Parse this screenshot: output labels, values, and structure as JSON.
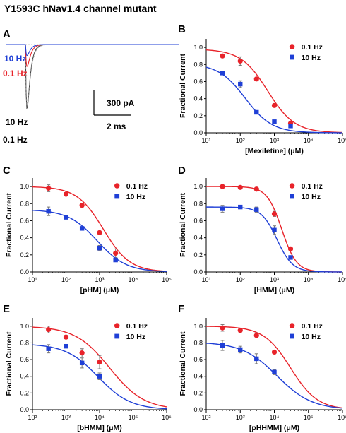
{
  "title": "Y1593C hNav1.4 channel mutant",
  "colors": {
    "red": "#e8232a",
    "blue": "#1f3fd6",
    "axis": "#000000",
    "error": "#777777"
  },
  "traces_panel": {
    "letter": "A",
    "label_10hz_top": "10 Hz",
    "label_01hz_top": "0.1 Hz",
    "label_10hz_bottom": "10 Hz",
    "label_01hz_bottom": "0.1 Hz",
    "scale_current": "300 pA",
    "scale_time": "2 ms"
  },
  "chart_data": [
    {
      "panel": "B",
      "type": "scatter",
      "fits": "sigmoidal curves",
      "xlabel": "[Mexiletine] (μM)",
      "ylabel": "Fractional Current",
      "xscale": "log",
      "xlim": [
        10,
        100000
      ],
      "ylim": [
        0,
        1.1
      ],
      "xticks": [
        "10¹",
        "10²",
        "10³",
        "10⁴",
        "10⁵"
      ],
      "yticks": [
        "0.0",
        "0.2",
        "0.4",
        "0.6",
        "0.8",
        "1.0"
      ],
      "series": [
        {
          "name": "0.1 Hz",
          "color": "red",
          "marker": "circle",
          "x": [
            30,
            100,
            300,
            1000,
            3000
          ],
          "y": [
            0.9,
            0.84,
            0.63,
            0.32,
            0.11
          ],
          "err": [
            0.02,
            0.05,
            0.02,
            0.02,
            0.02
          ],
          "fit": {
            "top": 0.98,
            "ic50": 640,
            "n": 1.1
          }
        },
        {
          "name": "10 Hz",
          "color": "blue",
          "marker": "square",
          "x": [
            30,
            100,
            300,
            1000,
            3000
          ],
          "y": [
            0.7,
            0.57,
            0.24,
            0.13,
            0.08
          ],
          "err": [
            0.02,
            0.04,
            0.02,
            0.01,
            0.01
          ],
          "fit": {
            "top": 0.81,
            "ic50": 140,
            "n": 1.1
          }
        }
      ]
    },
    {
      "panel": "C",
      "type": "scatter",
      "fits": "sigmoidal curves",
      "xlabel": "[pHM] (μM)",
      "ylabel": "Fractional Current",
      "xscale": "log",
      "xlim": [
        10,
        100000
      ],
      "ylim": [
        0,
        1.1
      ],
      "xticks": [
        "10¹",
        "10²",
        "10³",
        "10⁴",
        "10⁵"
      ],
      "yticks": [
        "0.0",
        "0.2",
        "0.4",
        "0.6",
        "0.8",
        "1.0"
      ],
      "series": [
        {
          "name": "0.1 Hz",
          "color": "red",
          "marker": "circle",
          "x": [
            30,
            100,
            300,
            1000,
            3000
          ],
          "y": [
            0.98,
            0.91,
            0.78,
            0.46,
            0.22
          ],
          "err": [
            0.04,
            0.02,
            0.02,
            0.02,
            0.05
          ],
          "fit": {
            "top": 1.0,
            "ic50": 1300,
            "n": 1.1
          }
        },
        {
          "name": "10 Hz",
          "color": "blue",
          "marker": "square",
          "x": [
            30,
            100,
            300,
            1000,
            3000
          ],
          "y": [
            0.71,
            0.64,
            0.51,
            0.28,
            0.14
          ],
          "err": [
            0.05,
            0.02,
            0.02,
            0.03,
            0.02
          ],
          "fit": {
            "top": 0.73,
            "ic50": 850,
            "n": 1.0
          }
        }
      ]
    },
    {
      "panel": "D",
      "type": "scatter",
      "fits": "sigmoidal curves",
      "xlabel": "[HMM] (μM)",
      "ylabel": "Fractional Current",
      "xscale": "log",
      "xlim": [
        10,
        100000
      ],
      "ylim": [
        0,
        1.1
      ],
      "xticks": [
        "10¹",
        "10²",
        "10³",
        "10⁴",
        "10⁵"
      ],
      "yticks": [
        "0.0",
        "0.2",
        "0.4",
        "0.6",
        "0.8",
        "1.0"
      ],
      "series": [
        {
          "name": "0.1 Hz",
          "color": "red",
          "marker": "circle",
          "x": [
            30,
            100,
            300,
            1000,
            3000
          ],
          "y": [
            1.0,
            0.99,
            0.97,
            0.68,
            0.27
          ],
          "err": [
            0.02,
            0.02,
            0.02,
            0.03,
            0.02
          ],
          "fit": {
            "top": 1.0,
            "ic50": 1650,
            "n": 2.0
          }
        },
        {
          "name": "10 Hz",
          "color": "blue",
          "marker": "square",
          "x": [
            30,
            100,
            300,
            1000,
            3000
          ],
          "y": [
            0.74,
            0.76,
            0.73,
            0.49,
            0.17
          ],
          "err": [
            0.04,
            0.02,
            0.03,
            0.05,
            0.02
          ],
          "fit": {
            "top": 0.76,
            "ic50": 1200,
            "n": 1.9
          }
        }
      ]
    },
    {
      "panel": "E",
      "type": "scatter",
      "fits": "sigmoidal curves",
      "xlabel": "[bHMM] (μM)",
      "ylabel": "Fractional Current",
      "xscale": "log",
      "xlim": [
        100,
        1000000
      ],
      "ylim": [
        0,
        1.1
      ],
      "xticks": [
        "10²",
        "10³",
        "10⁴",
        "10⁵",
        "10⁶"
      ],
      "yticks": [
        "0.0",
        "0.2",
        "0.4",
        "0.6",
        "0.8",
        "1.0"
      ],
      "series": [
        {
          "name": "0.1 Hz",
          "color": "red",
          "marker": "circle",
          "x": [
            300,
            1000,
            3000,
            10000
          ],
          "y": [
            0.96,
            0.87,
            0.68,
            0.57
          ],
          "err": [
            0.04,
            0.02,
            0.05,
            0.08
          ],
          "fit": {
            "top": 1.0,
            "ic50": 20000,
            "n": 0.85
          }
        },
        {
          "name": "10 Hz",
          "color": "blue",
          "marker": "square",
          "x": [
            300,
            1000,
            3000,
            10000
          ],
          "y": [
            0.73,
            0.76,
            0.56,
            0.4
          ],
          "err": [
            0.05,
            0.02,
            0.06,
            0.04
          ],
          "fit": {
            "top": 0.79,
            "ic50": 9000,
            "n": 0.9
          }
        }
      ]
    },
    {
      "panel": "F",
      "type": "scatter",
      "fits": "sigmoidal curves",
      "xlabel": "[pHHMM] (μM)",
      "ylabel": "Fractional Current",
      "xscale": "log",
      "xlim": [
        100,
        1000000
      ],
      "ylim": [
        0,
        1.1
      ],
      "xticks": [
        "10²",
        "10³",
        "10⁴",
        "10⁵",
        "10⁶"
      ],
      "yticks": [
        "0.0",
        "0.2",
        "0.4",
        "0.6",
        "0.8",
        "1.0"
      ],
      "series": [
        {
          "name": "0.1 Hz",
          "color": "red",
          "marker": "circle",
          "x": [
            300,
            1000,
            3000,
            10000
          ],
          "y": [
            0.98,
            0.95,
            0.89,
            0.69
          ],
          "err": [
            0.04,
            0.02,
            0.03,
            0.02
          ],
          "fit": {
            "top": 1.0,
            "ic50": 30000,
            "n": 1.1
          }
        },
        {
          "name": "10 Hz",
          "color": "blue",
          "marker": "square",
          "x": [
            300,
            1000,
            3000,
            10000
          ],
          "y": [
            0.77,
            0.72,
            0.61,
            0.45
          ],
          "err": [
            0.06,
            0.04,
            0.06,
            0.03
          ],
          "fit": {
            "top": 0.81,
            "ic50": 12000,
            "n": 0.85
          }
        }
      ]
    }
  ]
}
